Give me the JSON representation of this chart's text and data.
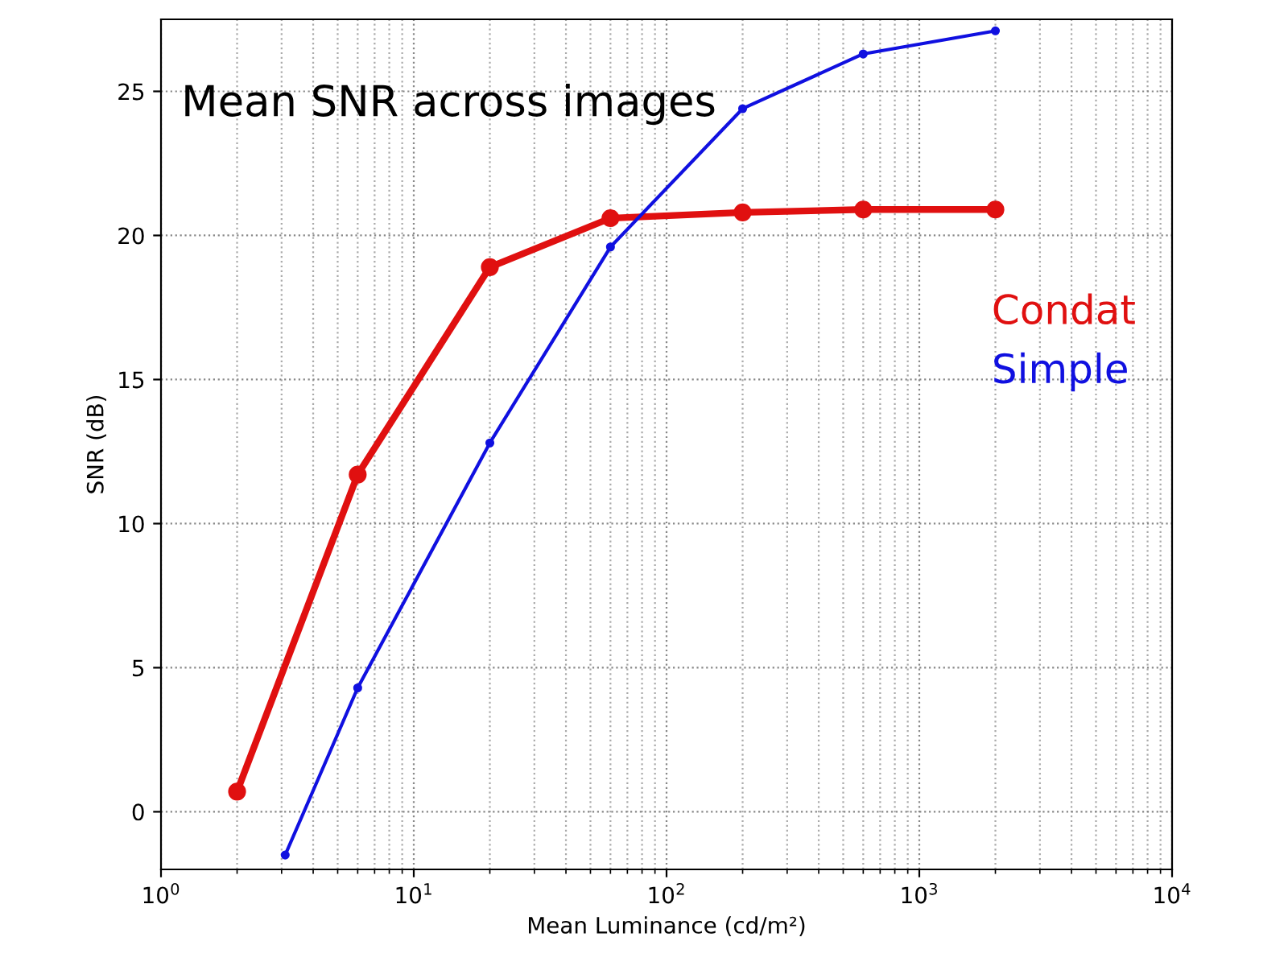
{
  "chart_data": {
    "type": "line",
    "title": "Mean SNR across images",
    "xlabel": "Mean Luminance (cd/m²)",
    "ylabel": "SNR (dB)",
    "log": "x",
    "xlim": [
      1,
      10000
    ],
    "xticks": [
      {
        "value": 1,
        "label": "10$^{0}$"
      },
      {
        "value": 10,
        "label": "10$^{1}$"
      },
      {
        "value": 100,
        "label": "10$^{2}$"
      },
      {
        "value": 1000,
        "label": "10$^{3}$"
      },
      {
        "value": 10000,
        "label": "10$^{4}$"
      }
    ],
    "ylim": [
      -2,
      27.5
    ],
    "yticks": [
      0,
      5,
      10,
      15,
      20,
      25
    ],
    "grid": true,
    "legend": "right",
    "marker": "circle",
    "line_style": "solid",
    "series": [
      {
        "name": "Condat",
        "color": "#e01010",
        "x": [
          2,
          6,
          20,
          60,
          200,
          600,
          2000
        ],
        "values": [
          0.7,
          11.7,
          18.9,
          20.6,
          20.8,
          20.9,
          20.9
        ]
      },
      {
        "name": "Simple",
        "color": "#1010e0",
        "x": [
          3.1,
          6,
          20,
          60,
          200,
          600,
          2000
        ],
        "values": [
          -1.5,
          4.3,
          12.8,
          19.6,
          24.4,
          26.3,
          27.1
        ]
      }
    ]
  }
}
